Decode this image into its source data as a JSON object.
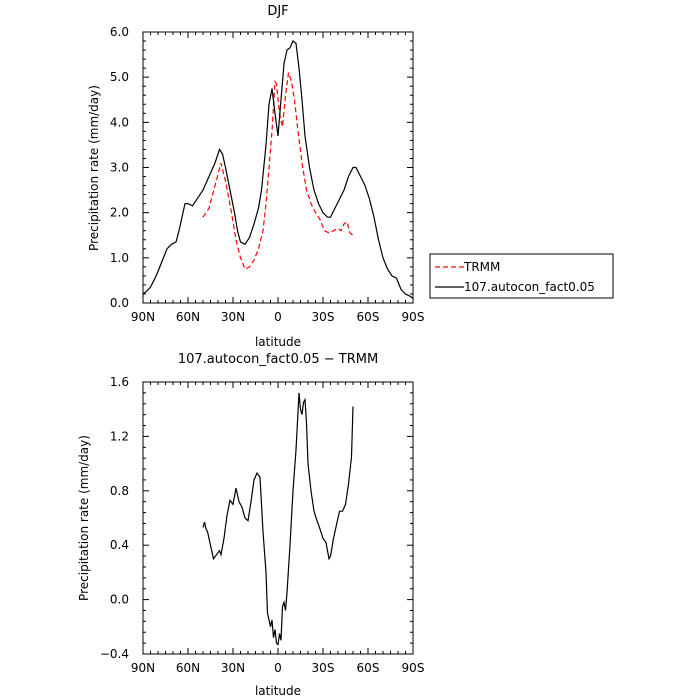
{
  "chart_data": [
    {
      "type": "line",
      "title": "DJF",
      "xlabel": "latitude",
      "ylabel": "Precipitation rate (mm/day)",
      "xlim": [
        -90,
        90
      ],
      "ylim": [
        0,
        6
      ],
      "x_ticks": [
        {
          "value": -90,
          "label": "90N"
        },
        {
          "value": -60,
          "label": "60N"
        },
        {
          "value": -30,
          "label": "30N"
        },
        {
          "value": 0,
          "label": "0"
        },
        {
          "value": 30,
          "label": "30S"
        },
        {
          "value": 60,
          "label": "60S"
        },
        {
          "value": 90,
          "label": "90S"
        }
      ],
      "y_ticks": [
        {
          "value": 0,
          "label": "0.0"
        },
        {
          "value": 1,
          "label": "1.0"
        },
        {
          "value": 2,
          "label": "2.0"
        },
        {
          "value": 3,
          "label": "3.0"
        },
        {
          "value": 4,
          "label": "4.0"
        },
        {
          "value": 5,
          "label": "5.0"
        },
        {
          "value": 6,
          "label": "6.0"
        }
      ],
      "legend": {
        "placement": "right"
      },
      "series": [
        {
          "name": "TRMM",
          "color": "#ff0000",
          "style": "dashed",
          "points": [
            [
              -50,
              1.9
            ],
            [
              -46,
              2.1
            ],
            [
              -42,
              2.6
            ],
            [
              -38,
              3.1
            ],
            [
              -35,
              2.7
            ],
            [
              -31,
              2.0
            ],
            [
              -28,
              1.4
            ],
            [
              -25,
              1.0
            ],
            [
              -22,
              0.75
            ],
            [
              -19,
              0.8
            ],
            [
              -16,
              0.95
            ],
            [
              -13,
              1.2
            ],
            [
              -10,
              1.6
            ],
            [
              -8,
              2.2
            ],
            [
              -6,
              3.0
            ],
            [
              -4,
              3.8
            ],
            [
              -2,
              4.9
            ],
            [
              -1,
              4.85
            ],
            [
              1,
              4.2
            ],
            [
              3,
              3.9
            ],
            [
              5,
              4.6
            ],
            [
              7,
              5.1
            ],
            [
              9,
              4.9
            ],
            [
              11,
              4.5
            ],
            [
              13,
              3.9
            ],
            [
              16,
              3.1
            ],
            [
              19,
              2.5
            ],
            [
              22,
              2.2
            ],
            [
              25,
              2.0
            ],
            [
              28,
              1.85
            ],
            [
              31,
              1.6
            ],
            [
              34,
              1.55
            ],
            [
              37,
              1.6
            ],
            [
              40,
              1.65
            ],
            [
              42,
              1.6
            ],
            [
              44,
              1.75
            ],
            [
              46,
              1.8
            ],
            [
              48,
              1.55
            ],
            [
              50,
              1.5
            ]
          ]
        },
        {
          "name": "107.autocon_fact0.05",
          "color": "#000000",
          "style": "solid",
          "points": [
            [
              -90,
              0.2
            ],
            [
              -88,
              0.25
            ],
            [
              -85,
              0.35
            ],
            [
              -82,
              0.55
            ],
            [
              -80,
              0.7
            ],
            [
              -77,
              0.95
            ],
            [
              -74,
              1.2
            ],
            [
              -71,
              1.3
            ],
            [
              -68,
              1.35
            ],
            [
              -66,
              1.6
            ],
            [
              -64,
              1.9
            ],
            [
              -62,
              2.2
            ],
            [
              -60,
              2.2
            ],
            [
              -57,
              2.15
            ],
            [
              -54,
              2.3
            ],
            [
              -50,
              2.5
            ],
            [
              -46,
              2.8
            ],
            [
              -42,
              3.1
            ],
            [
              -39,
              3.4
            ],
            [
              -37,
              3.3
            ],
            [
              -35,
              3.0
            ],
            [
              -32,
              2.5
            ],
            [
              -29,
              2.0
            ],
            [
              -27,
              1.6
            ],
            [
              -25,
              1.35
            ],
            [
              -22,
              1.3
            ],
            [
              -19,
              1.45
            ],
            [
              -16,
              1.75
            ],
            [
              -13,
              2.1
            ],
            [
              -11,
              2.5
            ],
            [
              -8,
              3.5
            ],
            [
              -6,
              4.4
            ],
            [
              -4,
              4.75
            ],
            [
              -2,
              4.2
            ],
            [
              0,
              3.7
            ],
            [
              2,
              4.5
            ],
            [
              4,
              5.3
            ],
            [
              6,
              5.6
            ],
            [
              8,
              5.65
            ],
            [
              10,
              5.8
            ],
            [
              12,
              5.75
            ],
            [
              14,
              5.2
            ],
            [
              16,
              4.5
            ],
            [
              18,
              3.7
            ],
            [
              21,
              3.0
            ],
            [
              24,
              2.5
            ],
            [
              27,
              2.2
            ],
            [
              30,
              2.0
            ],
            [
              33,
              1.9
            ],
            [
              35,
              1.9
            ],
            [
              38,
              2.1
            ],
            [
              41,
              2.3
            ],
            [
              44,
              2.5
            ],
            [
              47,
              2.8
            ],
            [
              50,
              3.0
            ],
            [
              52,
              3.0
            ],
            [
              55,
              2.8
            ],
            [
              58,
              2.6
            ],
            [
              61,
              2.3
            ],
            [
              64,
              1.9
            ],
            [
              67,
              1.4
            ],
            [
              70,
              1.0
            ],
            [
              73,
              0.75
            ],
            [
              76,
              0.6
            ],
            [
              79,
              0.55
            ],
            [
              82,
              0.3
            ],
            [
              85,
              0.2
            ],
            [
              88,
              0.15
            ],
            [
              90,
              0.1
            ]
          ]
        }
      ]
    },
    {
      "type": "line",
      "title": "107.autocon_fact0.05 − TRMM",
      "xlabel": "latitude",
      "ylabel": "Precipitation rate (mm/day)",
      "xlim": [
        -90,
        90
      ],
      "ylim": [
        -0.4,
        1.6
      ],
      "x_ticks": [
        {
          "value": -90,
          "label": "90N"
        },
        {
          "value": -60,
          "label": "60N"
        },
        {
          "value": -30,
          "label": "30N"
        },
        {
          "value": 0,
          "label": "0"
        },
        {
          "value": 30,
          "label": "30S"
        },
        {
          "value": 60,
          "label": "60S"
        },
        {
          "value": 90,
          "label": "90S"
        }
      ],
      "y_ticks": [
        {
          "value": -0.4,
          "label": "−0.4"
        },
        {
          "value": 0.0,
          "label": "0.0"
        },
        {
          "value": 0.4,
          "label": "0.4"
        },
        {
          "value": 0.8,
          "label": "0.8"
        },
        {
          "value": 1.2,
          "label": "1.2"
        },
        {
          "value": 1.6,
          "label": "1.6"
        }
      ],
      "series": [
        {
          "color": "#000000",
          "style": "solid",
          "points": [
            [
              -50,
              0.53
            ],
            [
              -49,
              0.57
            ],
            [
              -48,
              0.52
            ],
            [
              -47,
              0.5
            ],
            [
              -45,
              0.4
            ],
            [
              -43,
              0.3
            ],
            [
              -41,
              0.33
            ],
            [
              -39,
              0.36
            ],
            [
              -38,
              0.33
            ],
            [
              -36,
              0.45
            ],
            [
              -34,
              0.62
            ],
            [
              -32,
              0.73
            ],
            [
              -30,
              0.7
            ],
            [
              -28,
              0.82
            ],
            [
              -26,
              0.72
            ],
            [
              -24,
              0.68
            ],
            [
              -22,
              0.6
            ],
            [
              -20,
              0.58
            ],
            [
              -18,
              0.72
            ],
            [
              -16,
              0.88
            ],
            [
              -14,
              0.93
            ],
            [
              -12,
              0.9
            ],
            [
              -10,
              0.5
            ],
            [
              -8,
              0.2
            ],
            [
              -7,
              -0.1
            ],
            [
              -5,
              -0.2
            ],
            [
              -4,
              -0.15
            ],
            [
              -3,
              -0.28
            ],
            [
              -2,
              -0.22
            ],
            [
              -1,
              -0.32
            ],
            [
              0,
              -0.33
            ],
            [
              1,
              -0.25
            ],
            [
              2,
              -0.3
            ],
            [
              3,
              -0.05
            ],
            [
              4,
              -0.02
            ],
            [
              5,
              -0.08
            ],
            [
              6,
              0.05
            ],
            [
              8,
              0.4
            ],
            [
              10,
              0.8
            ],
            [
              12,
              1.1
            ],
            [
              14,
              1.52
            ],
            [
              15,
              1.4
            ],
            [
              16,
              1.36
            ],
            [
              17,
              1.45
            ],
            [
              18,
              1.47
            ],
            [
              19,
              1.3
            ],
            [
              20,
              1.0
            ],
            [
              22,
              0.8
            ],
            [
              24,
              0.65
            ],
            [
              26,
              0.58
            ],
            [
              28,
              0.52
            ],
            [
              30,
              0.45
            ],
            [
              32,
              0.42
            ],
            [
              34,
              0.3
            ],
            [
              35,
              0.32
            ],
            [
              37,
              0.45
            ],
            [
              39,
              0.55
            ],
            [
              41,
              0.65
            ],
            [
              43,
              0.65
            ],
            [
              45,
              0.7
            ],
            [
              47,
              0.85
            ],
            [
              49,
              1.05
            ],
            [
              50,
              1.42
            ]
          ]
        }
      ]
    }
  ]
}
